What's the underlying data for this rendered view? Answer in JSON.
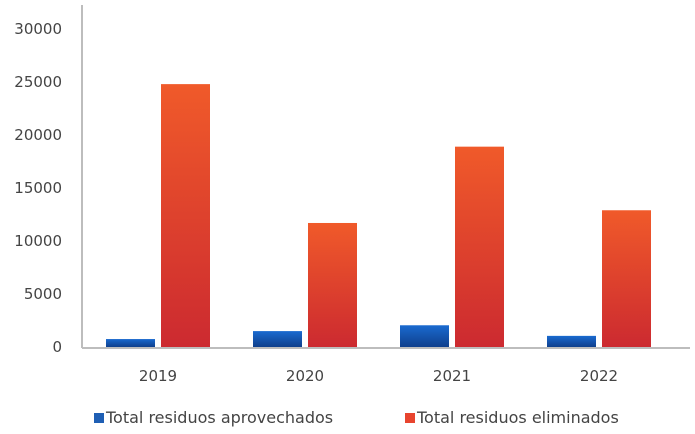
{
  "chart_data": {
    "type": "bar",
    "categories": [
      "2019",
      "2020",
      "2021",
      "2022"
    ],
    "series": [
      {
        "name": "Total residuos aprovechados",
        "values": [
          750,
          1500,
          2050,
          1050
        ],
        "color": "#1f5fb4"
      },
      {
        "name": "Total residuos eliminados",
        "values": [
          24800,
          11700,
          18900,
          12900
        ],
        "color": "#e8442e"
      }
    ],
    "yticks": [
      "0",
      "5000",
      "10000",
      "15000",
      "20000",
      "25000",
      "30000"
    ],
    "ylim": [
      0,
      30000
    ],
    "grid": false,
    "legend_position": "bottom"
  }
}
